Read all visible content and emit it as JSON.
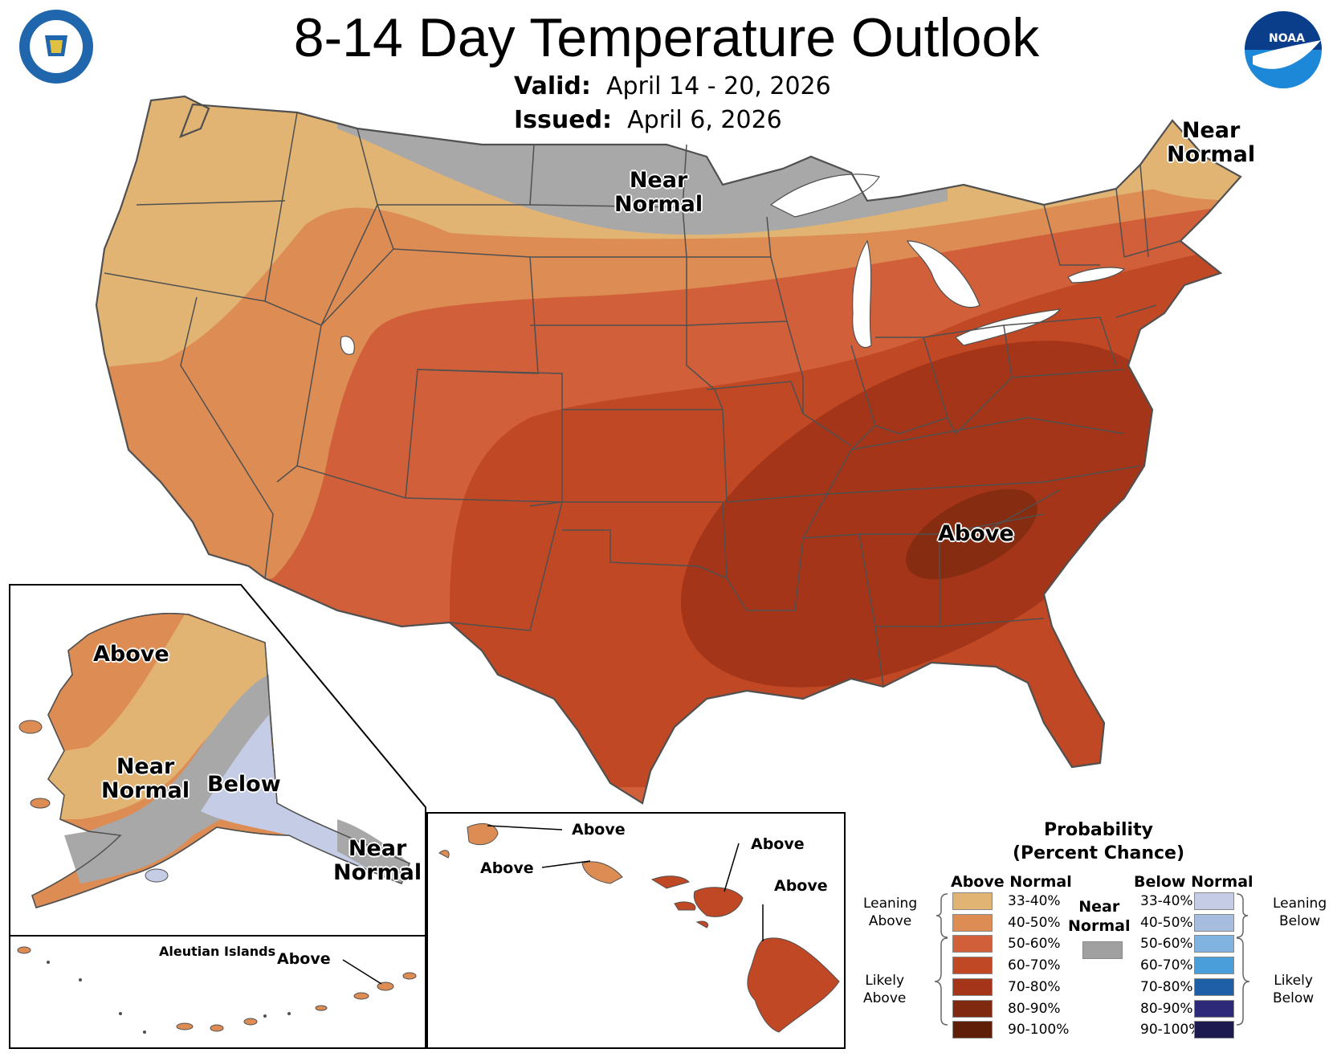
{
  "header": {
    "title": "8-14 Day Temperature Outlook",
    "valid_label": "Valid:",
    "valid_value": "April 14 - 20, 2026",
    "issued_label": "Issued:",
    "issued_value": "April 6, 2026"
  },
  "logos": {
    "left": "department-of-commerce-seal",
    "right": "noaa-logo",
    "noaa_text": "NOAA"
  },
  "conus_labels": {
    "near_normal_north": "Near\nNormal",
    "near_normal_ne": "Near\nNormal",
    "above_se": "Above"
  },
  "alaska_labels": {
    "above": "Above",
    "near_normal": "Near\nNormal",
    "below": "Below",
    "near_normal_se": "Near\nNormal"
  },
  "aleutian": {
    "title": "Aleutian Islands",
    "above": "Above"
  },
  "hawaii_labels": {
    "a1": "Above",
    "a2": "Above",
    "a3": "Above",
    "a4": "Above"
  },
  "legend": {
    "title": "Probability\n(Percent Chance)",
    "above_header": "Above Normal",
    "below_header": "Below Normal",
    "near_label": "Near\nNormal",
    "near_color": "#a0a0a0",
    "leaning_above": "Leaning\nAbove",
    "likely_above": "Likely\nAbove",
    "leaning_below": "Leaning\nBelow",
    "likely_below": "Likely\nBelow",
    "ranges": [
      "33-40%",
      "40-50%",
      "50-60%",
      "60-70%",
      "70-80%",
      "80-90%",
      "90-100%"
    ],
    "above_colors": [
      "#e2b473",
      "#dd8c54",
      "#d05f3a",
      "#c14824",
      "#a53518",
      "#7f2a10",
      "#5e1e08"
    ],
    "below_colors": [
      "#c5cde6",
      "#a6bde0",
      "#81b3e0",
      "#4a9fdb",
      "#1f5fa8",
      "#2e2a7a",
      "#1d1a4f"
    ]
  },
  "colors": {
    "ocean": "#ffffff",
    "state_lines": "#505050",
    "near_normal": "#a8a8a8"
  }
}
